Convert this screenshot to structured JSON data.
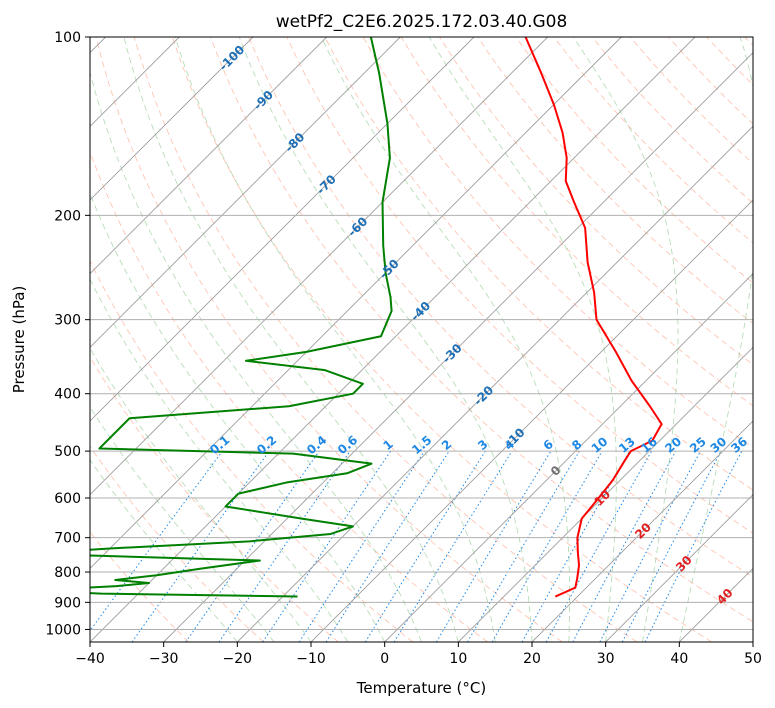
{
  "chart_data": {
    "type": "skew-t",
    "title": "wetPf2_C2E6.2025.172.03.40.G08",
    "xlabel": "Temperature (°C)",
    "ylabel": "Pressure (hPa)",
    "xlim": [
      -40,
      50
    ],
    "ylim": [
      1050,
      100
    ],
    "y_scale": "log",
    "grid": true,
    "x_ticks": [
      -40,
      -30,
      -20,
      -10,
      0,
      10,
      20,
      30,
      40,
      50
    ],
    "y_ticks": [
      100,
      200,
      300,
      400,
      500,
      600,
      700,
      800,
      900,
      1000
    ],
    "isotherm_labels": [
      -100,
      -90,
      -80,
      -70,
      -60,
      -50,
      -40,
      -30,
      -20,
      -10,
      0,
      10,
      20,
      30,
      40
    ],
    "mixing_ratio_labels": [
      "0.1",
      "0.2",
      "0.4",
      "0.6",
      "1",
      "1.5",
      "2",
      "3",
      "4",
      "6",
      "8",
      "10",
      "13",
      "16",
      "20",
      "25",
      "30",
      "36"
    ],
    "series": [
      {
        "role": "temperature",
        "color": "#ff0000",
        "points": [
          {
            "p": 880,
            "t": 17
          },
          {
            "p": 850,
            "t": 18.5
          },
          {
            "p": 820,
            "t": 17.5
          },
          {
            "p": 780,
            "t": 16
          },
          {
            "p": 740,
            "t": 14
          },
          {
            "p": 700,
            "t": 12
          },
          {
            "p": 650,
            "t": 10
          },
          {
            "p": 600,
            "t": 9.5
          },
          {
            "p": 560,
            "t": 9
          },
          {
            "p": 520,
            "t": 8
          },
          {
            "p": 500,
            "t": 7.5
          },
          {
            "p": 480,
            "t": 9
          },
          {
            "p": 450,
            "t": 8
          },
          {
            "p": 420,
            "t": 4
          },
          {
            "p": 380,
            "t": -2
          },
          {
            "p": 340,
            "t": -8
          },
          {
            "p": 300,
            "t": -15
          },
          {
            "p": 270,
            "t": -19
          },
          {
            "p": 240,
            "t": -24
          },
          {
            "p": 210,
            "t": -29
          },
          {
            "p": 190,
            "t": -34
          },
          {
            "p": 175,
            "t": -38
          },
          {
            "p": 160,
            "t": -41
          },
          {
            "p": 145,
            "t": -45
          },
          {
            "p": 130,
            "t": -50
          },
          {
            "p": 115,
            "t": -56
          },
          {
            "p": 100,
            "t": -63
          }
        ]
      },
      {
        "role": "dewpoint",
        "color": "#008000",
        "points": [
          {
            "p": 880,
            "t": -18
          },
          {
            "p": 870,
            "t": -45
          },
          {
            "p": 860,
            "t": -55
          },
          {
            "p": 845,
            "t": -44
          },
          {
            "p": 835,
            "t": -40
          },
          {
            "p": 825,
            "t": -45
          },
          {
            "p": 810,
            "t": -40
          },
          {
            "p": 790,
            "t": -35
          },
          {
            "p": 765,
            "t": -28
          },
          {
            "p": 745,
            "t": -60
          },
          {
            "p": 730,
            "t": -50
          },
          {
            "p": 710,
            "t": -32
          },
          {
            "p": 690,
            "t": -22
          },
          {
            "p": 670,
            "t": -20
          },
          {
            "p": 650,
            "t": -28
          },
          {
            "p": 620,
            "t": -40
          },
          {
            "p": 590,
            "t": -40
          },
          {
            "p": 565,
            "t": -35
          },
          {
            "p": 545,
            "t": -28
          },
          {
            "p": 525,
            "t": -26
          },
          {
            "p": 505,
            "t": -38
          },
          {
            "p": 495,
            "t": -65
          },
          {
            "p": 440,
            "t": -65
          },
          {
            "p": 420,
            "t": -45
          },
          {
            "p": 400,
            "t": -38
          },
          {
            "p": 385,
            "t": -38
          },
          {
            "p": 365,
            "t": -45
          },
          {
            "p": 352,
            "t": -57
          },
          {
            "p": 340,
            "t": -50
          },
          {
            "p": 320,
            "t": -42
          },
          {
            "p": 290,
            "t": -44
          },
          {
            "p": 275,
            "t": -46
          },
          {
            "p": 250,
            "t": -50
          },
          {
            "p": 225,
            "t": -54
          },
          {
            "p": 190,
            "t": -60
          },
          {
            "p": 160,
            "t": -65
          },
          {
            "p": 140,
            "t": -70
          },
          {
            "p": 115,
            "t": -78
          },
          {
            "p": 100,
            "t": -84
          }
        ]
      }
    ]
  }
}
